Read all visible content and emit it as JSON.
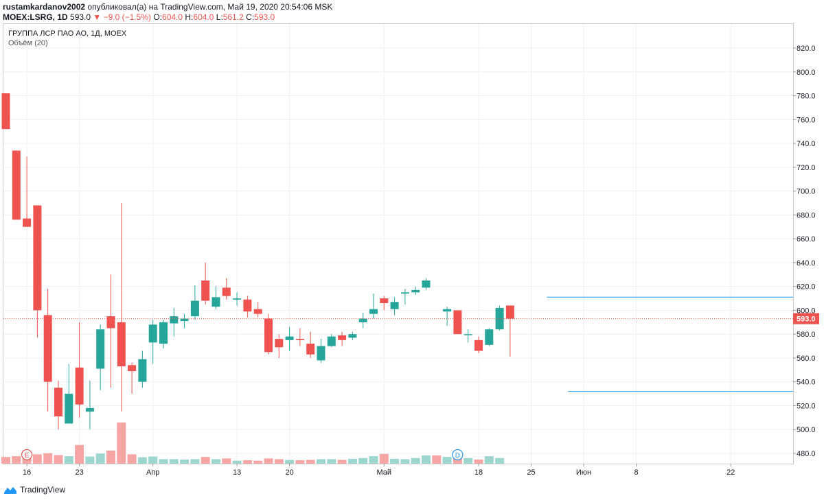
{
  "header": {
    "user": "rustamkardanov2002",
    "published_text": " опубликовал(а) на TradingView.com, Май 19, 2020 20:54:06 MSK",
    "symbol": "MOEX:LSRG, 1D",
    "last_price": "593.0",
    "change": "▼ −9.0 (−1.5%)",
    "ohlc": [
      {
        "label": "O:",
        "value": "604.0"
      },
      {
        "label": "H:",
        "value": "604.0"
      },
      {
        "label": "L:",
        "value": "561.2"
      },
      {
        "label": "C:",
        "value": "593.0"
      }
    ]
  },
  "legend": {
    "title": "ГРУППА ЛСР ПАО АО, 1Д, MOEX",
    "volume": "Объём (20)"
  },
  "colors": {
    "up": "#26a69a",
    "down": "#ef5350",
    "vol_up": "#9cd6cf",
    "vol_down": "#f5a6a4",
    "hline": "#2196f3",
    "grid": "#eef0f3",
    "price_line": "#ef5350"
  },
  "footer": {
    "brand": "TradingView"
  },
  "chart_data": {
    "type": "candlestick",
    "y_axis": {
      "min": 470,
      "max": 830,
      "ticks": [
        480,
        500,
        520,
        540,
        560,
        580,
        600,
        620,
        640,
        660,
        680,
        700,
        720,
        740,
        760,
        780,
        800,
        820
      ],
      "tick_labels": [
        "480.0",
        "500.0",
        "520.0",
        "540.0",
        "560.0",
        "580.0",
        "600.0",
        "620.0",
        "640.0",
        "660.0",
        "680.0",
        "700.0",
        "720.0",
        "740.0",
        "760.0",
        "780.0",
        "800.0",
        "820.0"
      ]
    },
    "current_price": 593.0,
    "current_price_label": "593.0",
    "x_axis_labels": [
      {
        "label": "16",
        "bar": 2
      },
      {
        "label": "23",
        "bar": 7
      },
      {
        "label": "Апр",
        "bar": 14
      },
      {
        "label": "13",
        "bar": 22
      },
      {
        "label": "20",
        "bar": 27
      },
      {
        "label": "Май",
        "bar": 36
      },
      {
        "label": "18",
        "bar": 45
      },
      {
        "label": "25",
        "bar": 50
      },
      {
        "label": "Июн",
        "bar": 55
      },
      {
        "label": "8",
        "bar": 60
      },
      {
        "label": "22",
        "bar": 69
      }
    ],
    "candles": [
      {
        "o": 782,
        "h": 782,
        "l": 752,
        "c": 752
      },
      {
        "o": 734,
        "h": 734,
        "l": 676,
        "c": 676
      },
      {
        "o": 677,
        "h": 729,
        "l": 670,
        "c": 670
      },
      {
        "o": 688,
        "h": 688,
        "l": 577,
        "c": 600
      },
      {
        "o": 596,
        "h": 618,
        "l": 515,
        "c": 540
      },
      {
        "o": 535,
        "h": 541,
        "l": 500,
        "c": 511
      },
      {
        "o": 505,
        "h": 555,
        "l": 505,
        "c": 530
      },
      {
        "o": 552,
        "h": 590,
        "l": 510,
        "c": 521
      },
      {
        "o": 515,
        "h": 541,
        "l": 500,
        "c": 518
      },
      {
        "o": 551,
        "h": 588,
        "l": 533,
        "c": 584
      },
      {
        "o": 595,
        "h": 630,
        "l": 535,
        "c": 585
      },
      {
        "o": 590,
        "h": 690,
        "l": 515,
        "c": 553
      },
      {
        "o": 554,
        "h": 556,
        "l": 530,
        "c": 549
      },
      {
        "o": 540,
        "h": 566,
        "l": 535,
        "c": 559
      },
      {
        "o": 573,
        "h": 592,
        "l": 555,
        "c": 588
      },
      {
        "o": 572,
        "h": 592,
        "l": 568,
        "c": 590
      },
      {
        "o": 589,
        "h": 602,
        "l": 578,
        "c": 595
      },
      {
        "o": 591,
        "h": 597,
        "l": 585,
        "c": 593
      },
      {
        "o": 595,
        "h": 621,
        "l": 592,
        "c": 608
      },
      {
        "o": 625,
        "h": 640,
        "l": 605,
        "c": 608
      },
      {
        "o": 603,
        "h": 620,
        "l": 601,
        "c": 611
      },
      {
        "o": 619,
        "h": 627,
        "l": 609,
        "c": 612
      },
      {
        "o": 609,
        "h": 615,
        "l": 604,
        "c": 610
      },
      {
        "o": 609,
        "h": 612,
        "l": 594,
        "c": 599
      },
      {
        "o": 601,
        "h": 607,
        "l": 594,
        "c": 597
      },
      {
        "o": 593,
        "h": 597,
        "l": 563,
        "c": 565
      },
      {
        "o": 576,
        "h": 580,
        "l": 560,
        "c": 569
      },
      {
        "o": 575,
        "h": 586,
        "l": 566,
        "c": 578
      },
      {
        "o": 576,
        "h": 585,
        "l": 570,
        "c": 575
      },
      {
        "o": 572,
        "h": 582,
        "l": 560,
        "c": 563
      },
      {
        "o": 558,
        "h": 576,
        "l": 556,
        "c": 570
      },
      {
        "o": 570,
        "h": 580,
        "l": 569,
        "c": 578
      },
      {
        "o": 579,
        "h": 582,
        "l": 570,
        "c": 575
      },
      {
        "o": 577,
        "h": 582,
        "l": 575,
        "c": 580
      },
      {
        "o": 590,
        "h": 598,
        "l": 585,
        "c": 593
      },
      {
        "o": 597,
        "h": 614,
        "l": 593,
        "c": 601
      },
      {
        "o": 610,
        "h": 612,
        "l": 600,
        "c": 606
      },
      {
        "o": 601,
        "h": 611,
        "l": 596,
        "c": 607
      },
      {
        "o": 614,
        "h": 618,
        "l": 605,
        "c": 615
      },
      {
        "o": 615,
        "h": 620,
        "l": 613,
        "c": 617
      },
      {
        "o": 619,
        "h": 627,
        "l": 617,
        "c": 625
      },
      null,
      {
        "o": 599,
        "h": 603,
        "l": 587,
        "c": 601
      },
      {
        "o": 600,
        "h": 600,
        "l": 580,
        "c": 580
      },
      {
        "o": 580,
        "h": 584,
        "l": 573,
        "c": 580
      },
      {
        "o": 575,
        "h": 578,
        "l": 564,
        "c": 566
      },
      {
        "o": 571,
        "h": 585,
        "l": 570,
        "c": 584
      },
      {
        "o": 584,
        "h": 604,
        "l": 583,
        "c": 602
      },
      {
        "o": 604,
        "h": 604,
        "l": 561,
        "c": 593
      }
    ],
    "volume": {
      "max": 110,
      "values": [
        18,
        20,
        19,
        25,
        28,
        23,
        20,
        50,
        19,
        27,
        35,
        110,
        25,
        17,
        19,
        12,
        12,
        11,
        12,
        18,
        12,
        14,
        8,
        9,
        8,
        14,
        12,
        10,
        9,
        10,
        12,
        12,
        10,
        13,
        15,
        20,
        26,
        13,
        12,
        15,
        22,
        22,
        18,
        15,
        15,
        11,
        20,
        15
      ]
    },
    "horizontal_lines": [
      {
        "price": 611,
        "from_bar": 51.5
      },
      {
        "price": 532,
        "from_bar": 53.5
      }
    ],
    "events": [
      {
        "label": "E",
        "bar": 2,
        "color": "#ef5350"
      },
      {
        "label": "D",
        "bar": 43,
        "color": "#2196f3"
      }
    ]
  }
}
